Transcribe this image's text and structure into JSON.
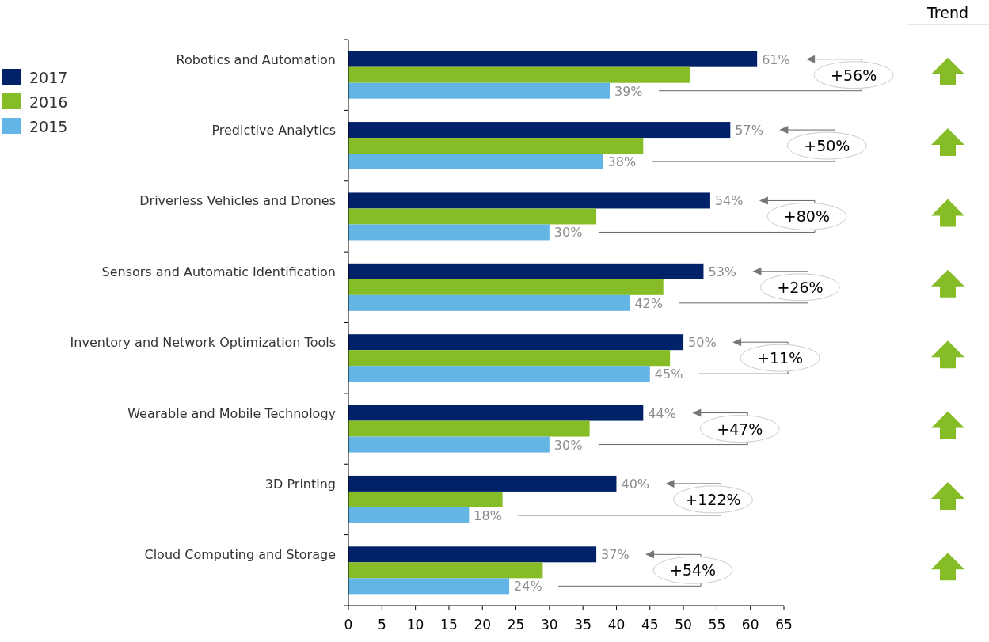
{
  "chart_data": {
    "type": "bar",
    "orientation": "horizontal",
    "categories": [
      "Robotics and Automation",
      "Predictive Analytics",
      "Driverless Vehicles and Drones",
      "Sensors and Automatic Identification",
      "Inventory and Network Optimization Tools",
      "Wearable and Mobile Technology",
      "3D Printing",
      "Cloud Computing and Storage"
    ],
    "series": [
      {
        "name": "2017",
        "color": "#012169",
        "values": [
          61,
          57,
          54,
          53,
          50,
          44,
          40,
          37
        ],
        "value_labels": [
          "61%",
          "57%",
          "54%",
          "53%",
          "50%",
          "44%",
          "40%",
          "37%"
        ]
      },
      {
        "name": "2016",
        "color": "#86bc25",
        "values": [
          51,
          44,
          37,
          47,
          48,
          36,
          23,
          29
        ]
      },
      {
        "name": "2015",
        "color": "#62b5e5",
        "values": [
          39,
          38,
          30,
          42,
          45,
          30,
          18,
          24
        ],
        "value_labels": [
          "39%",
          "38%",
          "30%",
          "42%",
          "45%",
          "30%",
          "18%",
          "24%"
        ]
      }
    ],
    "xlim": [
      0,
      65
    ],
    "xticks": [
      0,
      5,
      10,
      15,
      20,
      25,
      30,
      35,
      40,
      45,
      50,
      55,
      60,
      65
    ],
    "grid": false,
    "legend": "left",
    "annotations": [
      "+56%",
      "+50%",
      "+80%",
      "+26%",
      "+11%",
      "+47%",
      "+122%",
      "+54%",
      "Trend"
    ]
  }
}
